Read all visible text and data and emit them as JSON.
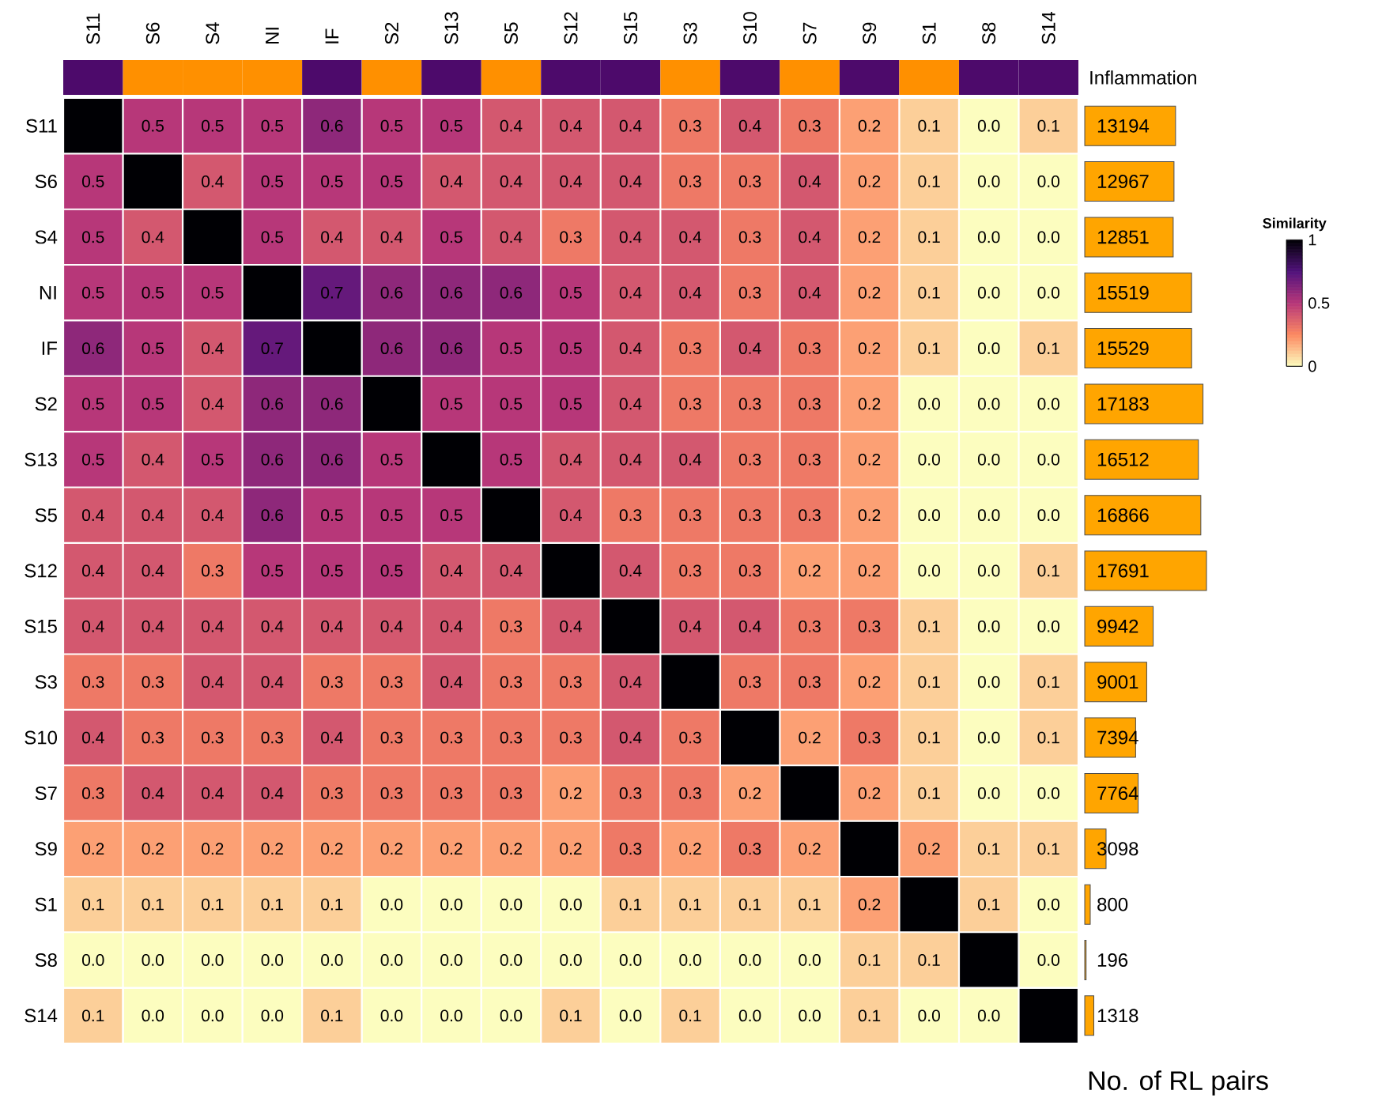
{
  "chart_data": [
    {
      "type": "heatmap",
      "clabel": "Similarity",
      "clim": [
        0,
        1
      ],
      "cticks": [
        0,
        0.5,
        1
      ],
      "categories": [
        "S11",
        "S6",
        "S4",
        "NI",
        "IF",
        "S2",
        "S13",
        "S5",
        "S12",
        "S15",
        "S3",
        "S10",
        "S7",
        "S9",
        "S1",
        "S8",
        "S14"
      ],
      "y_categories": [
        "S11",
        "S6",
        "S4",
        "NI",
        "IF",
        "S2",
        "S13",
        "S5",
        "S12",
        "S15",
        "S3",
        "S10",
        "S7",
        "S9",
        "S1",
        "S8",
        "S14"
      ],
      "cells": [
        [
          1,
          0.5,
          0.5,
          0.5,
          0.6,
          0.5,
          0.5,
          0.4,
          0.4,
          0.4,
          0.3,
          0.4,
          0.3,
          0.2,
          0.1,
          0.0,
          0.1
        ],
        [
          0.5,
          1,
          0.4,
          0.5,
          0.5,
          0.5,
          0.4,
          0.4,
          0.4,
          0.4,
          0.3,
          0.3,
          0.4,
          0.2,
          0.1,
          0.0,
          0.0
        ],
        [
          0.5,
          0.4,
          1,
          0.5,
          0.4,
          0.4,
          0.5,
          0.4,
          0.3,
          0.4,
          0.4,
          0.3,
          0.4,
          0.2,
          0.1,
          0.0,
          0.0
        ],
        [
          0.5,
          0.5,
          0.5,
          1,
          0.7,
          0.6,
          0.6,
          0.6,
          0.5,
          0.4,
          0.4,
          0.3,
          0.4,
          0.2,
          0.1,
          0.0,
          0.0
        ],
        [
          0.6,
          0.5,
          0.4,
          0.7,
          1,
          0.6,
          0.6,
          0.5,
          0.5,
          0.4,
          0.3,
          0.4,
          0.3,
          0.2,
          0.1,
          0.0,
          0.1
        ],
        [
          0.5,
          0.5,
          0.4,
          0.6,
          0.6,
          1,
          0.5,
          0.5,
          0.5,
          0.4,
          0.3,
          0.3,
          0.3,
          0.2,
          0.0,
          0.0,
          0.0
        ],
        [
          0.5,
          0.4,
          0.5,
          0.6,
          0.6,
          0.5,
          1,
          0.5,
          0.4,
          0.4,
          0.4,
          0.3,
          0.3,
          0.2,
          0.0,
          0.0,
          0.0
        ],
        [
          0.4,
          0.4,
          0.4,
          0.6,
          0.5,
          0.5,
          0.5,
          1,
          0.4,
          0.3,
          0.3,
          0.3,
          0.3,
          0.2,
          0.0,
          0.0,
          0.0
        ],
        [
          0.4,
          0.4,
          0.3,
          0.5,
          0.5,
          0.5,
          0.4,
          0.4,
          1,
          0.4,
          0.3,
          0.3,
          0.2,
          0.2,
          0.0,
          0.0,
          0.1
        ],
        [
          0.4,
          0.4,
          0.4,
          0.4,
          0.4,
          0.4,
          0.4,
          0.3,
          0.4,
          1,
          0.4,
          0.4,
          0.3,
          0.3,
          0.1,
          0.0,
          0.0
        ],
        [
          0.3,
          0.3,
          0.4,
          0.4,
          0.3,
          0.3,
          0.4,
          0.3,
          0.3,
          0.4,
          1,
          0.3,
          0.3,
          0.2,
          0.1,
          0.0,
          0.1
        ],
        [
          0.4,
          0.3,
          0.3,
          0.3,
          0.4,
          0.3,
          0.3,
          0.3,
          0.3,
          0.4,
          0.3,
          1,
          0.2,
          0.3,
          0.1,
          0.0,
          0.1
        ],
        [
          0.3,
          0.4,
          0.4,
          0.4,
          0.3,
          0.3,
          0.3,
          0.3,
          0.2,
          0.3,
          0.3,
          0.2,
          1,
          0.2,
          0.1,
          0.0,
          0.0
        ],
        [
          0.2,
          0.2,
          0.2,
          0.2,
          0.2,
          0.2,
          0.2,
          0.2,
          0.2,
          0.3,
          0.2,
          0.3,
          0.2,
          1,
          0.2,
          0.1,
          0.1
        ],
        [
          0.1,
          0.1,
          0.1,
          0.1,
          0.1,
          0.0,
          0.0,
          0.0,
          0.0,
          0.1,
          0.1,
          0.1,
          0.1,
          0.2,
          1,
          0.1,
          0.0
        ],
        [
          0.0,
          0.0,
          0.0,
          0.0,
          0.0,
          0.0,
          0.0,
          0.0,
          0.0,
          0.0,
          0.0,
          0.0,
          0.0,
          0.1,
          0.1,
          1,
          0.0
        ],
        [
          0.1,
          0.0,
          0.0,
          0.0,
          0.1,
          0.0,
          0.0,
          0.0,
          0.1,
          0.0,
          0.1,
          0.0,
          0.0,
          0.1,
          0.0,
          0.0,
          1
        ]
      ],
      "cell_labels": [
        [
          null,
          "0.5",
          "0.5",
          "0.5",
          "0.6",
          "0.5",
          "0.5",
          "0.4",
          "0.4",
          "0.4",
          "0.3",
          "0.4",
          "0.3",
          "0.2",
          "0.1",
          "0.0",
          "0.1"
        ],
        [
          "0.5",
          null,
          "0.4",
          "0.5",
          "0.5",
          "0.5",
          "0.4",
          "0.4",
          "0.4",
          "0.4",
          "0.3",
          "0.3",
          "0.4",
          "0.2",
          "0.1",
          "0.0",
          "0.0"
        ],
        [
          "0.5",
          "0.4",
          null,
          "0.5",
          "0.4",
          "0.4",
          "0.5",
          "0.4",
          "0.3",
          "0.4",
          "0.4",
          "0.3",
          "0.4",
          "0.2",
          "0.1",
          "0.0",
          "0.0"
        ],
        [
          "0.5",
          "0.5",
          "0.5",
          null,
          "0.7",
          "0.6",
          "0.6",
          "0.6",
          "0.5",
          "0.4",
          "0.4",
          "0.3",
          "0.4",
          "0.2",
          "0.1",
          "0.0",
          "0.0"
        ],
        [
          "0.6",
          "0.5",
          "0.4",
          "0.7",
          null,
          "0.6",
          "0.6",
          "0.5",
          "0.5",
          "0.4",
          "0.3",
          "0.4",
          "0.3",
          "0.2",
          "0.1",
          "0.0",
          "0.1"
        ],
        [
          "0.5",
          "0.5",
          "0.4",
          "0.6",
          "0.6",
          null,
          "0.5",
          "0.5",
          "0.5",
          "0.4",
          "0.3",
          "0.3",
          "0.3",
          "0.2",
          "0.0",
          "0.0",
          "0.0"
        ],
        [
          "0.5",
          "0.4",
          "0.5",
          "0.6",
          "0.6",
          "0.5",
          null,
          "0.5",
          "0.4",
          "0.4",
          "0.4",
          "0.3",
          "0.3",
          "0.2",
          "0.0",
          "0.0",
          "0.0"
        ],
        [
          "0.4",
          "0.4",
          "0.4",
          "0.6",
          "0.5",
          "0.5",
          "0.5",
          null,
          "0.4",
          "0.3",
          "0.3",
          "0.3",
          "0.3",
          "0.2",
          "0.0",
          "0.0",
          "0.0"
        ],
        [
          "0.4",
          "0.4",
          "0.3",
          "0.5",
          "0.5",
          "0.5",
          "0.4",
          "0.4",
          null,
          "0.4",
          "0.3",
          "0.3",
          "0.2",
          "0.2",
          "0.0",
          "0.0",
          "0.1"
        ],
        [
          "0.4",
          "0.4",
          "0.4",
          "0.4",
          "0.4",
          "0.4",
          "0.4",
          "0.3",
          "0.4",
          null,
          "0.4",
          "0.4",
          "0.3",
          "0.3",
          "0.1",
          "0.0",
          "0.0"
        ],
        [
          "0.3",
          "0.3",
          "0.4",
          "0.4",
          "0.3",
          "0.3",
          "0.4",
          "0.3",
          "0.3",
          "0.4",
          null,
          "0.3",
          "0.3",
          "0.2",
          "0.1",
          "0.0",
          "0.1"
        ],
        [
          "0.4",
          "0.3",
          "0.3",
          "0.3",
          "0.4",
          "0.3",
          "0.3",
          "0.3",
          "0.3",
          "0.4",
          "0.3",
          null,
          "0.2",
          "0.3",
          "0.1",
          "0.0",
          "0.1"
        ],
        [
          "0.3",
          "0.4",
          "0.4",
          "0.4",
          "0.3",
          "0.3",
          "0.3",
          "0.3",
          "0.2",
          "0.3",
          "0.3",
          "0.2",
          null,
          "0.2",
          "0.1",
          "0.0",
          "0.0"
        ],
        [
          "0.2",
          "0.2",
          "0.2",
          "0.2",
          "0.2",
          "0.2",
          "0.2",
          "0.2",
          "0.2",
          "0.3",
          "0.2",
          "0.3",
          "0.2",
          null,
          "0.2",
          "0.1",
          "0.1"
        ],
        [
          "0.1",
          "0.1",
          "0.1",
          "0.1",
          "0.1",
          "0.0",
          "0.0",
          "0.0",
          "0.0",
          "0.1",
          "0.1",
          "0.1",
          "0.1",
          "0.2",
          null,
          "0.1",
          "0.0"
        ],
        [
          "0.0",
          "0.0",
          "0.0",
          "0.0",
          "0.0",
          "0.0",
          "0.0",
          "0.0",
          "0.0",
          "0.0",
          "0.0",
          "0.0",
          "0.0",
          "0.1",
          "0.1",
          null,
          "0.0"
        ],
        [
          "0.1",
          "0.0",
          "0.0",
          "0.0",
          "0.1",
          "0.0",
          "0.0",
          "0.0",
          "0.1",
          "0.0",
          "0.1",
          "0.0",
          "0.0",
          "0.1",
          "0.0",
          "0.0",
          null
        ]
      ]
    },
    {
      "type": "other",
      "title": "Inflammation",
      "colors": [
        "#4d0a6b",
        "#ff9000",
        "#ff9000",
        "#ff9000",
        "#4d0a6b",
        "#ff9000",
        "#4d0a6b",
        "#ff9000",
        "#4d0a6b",
        "#4d0a6b",
        "#ff9000",
        "#4d0a6b",
        "#ff9000",
        "#4d0a6b",
        "#ff9000",
        "#4d0a6b",
        "#4d0a6b"
      ]
    },
    {
      "type": "bar",
      "orientation": "horizontal",
      "title": "No. of RL pairs",
      "color": "#ffa500",
      "data_labels": true,
      "tick_labels": false,
      "categories": [
        null,
        null,
        null,
        null,
        null,
        null,
        null,
        null,
        null,
        null,
        null,
        null,
        null,
        null,
        null,
        null,
        null
      ],
      "values": [
        13194,
        12967,
        12851,
        15519,
        15529,
        17183,
        16512,
        16866,
        17691,
        9942,
        9001,
        7394,
        7764,
        3098,
        800,
        196,
        1318
      ]
    }
  ]
}
